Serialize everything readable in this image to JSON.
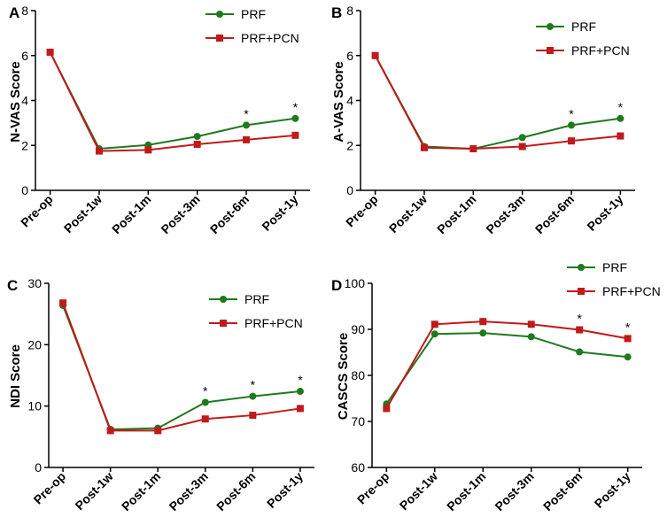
{
  "colors": {
    "prf": "#1e7a1e",
    "prf_pcn": "#c01a1a",
    "axis": "#000000"
  },
  "chart_data": [
    {
      "type": "line",
      "panel": "A",
      "ylabel": "N-VAS Score",
      "ylim": [
        0,
        8
      ],
      "yticks": [
        0,
        2,
        4,
        6,
        8
      ],
      "categories": [
        "Pre-op",
        "Post-1w",
        "Post-1m",
        "Post-3m",
        "Post-6m",
        "Post-1y"
      ],
      "series": [
        {
          "name": "PRF",
          "values": [
            6.15,
            1.85,
            2.02,
            2.4,
            2.9,
            3.2
          ]
        },
        {
          "name": "PRF+PCN",
          "values": [
            6.15,
            1.75,
            1.8,
            2.05,
            2.25,
            2.45
          ]
        }
      ],
      "significance": [
        {
          "category": "Post-6m",
          "label": "*"
        },
        {
          "category": "Post-1y",
          "label": "*"
        }
      ],
      "legend": "top-right"
    },
    {
      "type": "line",
      "panel": "B",
      "ylabel": "A-VAS Score",
      "ylim": [
        0,
        8
      ],
      "yticks": [
        0,
        2,
        4,
        6,
        8
      ],
      "categories": [
        "Pre-op",
        "Post-1w",
        "Post-1m",
        "Post-3m",
        "Post-6m",
        "Post-1y"
      ],
      "series": [
        {
          "name": "PRF",
          "values": [
            6.0,
            1.95,
            1.85,
            2.35,
            2.9,
            3.2
          ]
        },
        {
          "name": "PRF+PCN",
          "values": [
            6.0,
            1.9,
            1.85,
            1.95,
            2.2,
            2.42
          ]
        }
      ],
      "significance": [
        {
          "category": "Post-6m",
          "label": "*"
        },
        {
          "category": "Post-1y",
          "label": "*"
        }
      ],
      "legend": "top-right"
    },
    {
      "type": "line",
      "panel": "C",
      "ylabel": "NDI Score",
      "ylim": [
        0,
        30
      ],
      "yticks": [
        0,
        10,
        20,
        30
      ],
      "categories": [
        "Pre-op",
        "Post-1w",
        "Post-1m",
        "Post-3m",
        "Post-6m",
        "Post-1y"
      ],
      "series": [
        {
          "name": "PRF",
          "values": [
            26.4,
            6.2,
            6.4,
            10.6,
            11.6,
            12.4
          ]
        },
        {
          "name": "PRF+PCN",
          "values": [
            26.8,
            6.0,
            6.0,
            7.9,
            8.5,
            9.6
          ]
        }
      ],
      "significance": [
        {
          "category": "Post-3m",
          "label": "*"
        },
        {
          "category": "Post-6m",
          "label": "*"
        },
        {
          "category": "Post-1y",
          "label": "*"
        }
      ],
      "legend": "top-right"
    },
    {
      "type": "line",
      "panel": "D",
      "ylabel": "CASCS Score",
      "ylim": [
        60,
        100
      ],
      "yticks": [
        60,
        70,
        80,
        90,
        100
      ],
      "categories": [
        "Pre-op",
        "Post-1w",
        "Post-1m",
        "Post-3m",
        "Post-6m",
        "Post-1y"
      ],
      "series": [
        {
          "name": "PRF",
          "values": [
            73.8,
            89.0,
            89.2,
            88.4,
            85.1,
            84.0
          ]
        },
        {
          "name": "PRF+PCN",
          "values": [
            72.8,
            91.1,
            91.7,
            91.1,
            89.9,
            88.0
          ]
        }
      ],
      "significance": [
        {
          "category": "Post-6m",
          "label": "*"
        },
        {
          "category": "Post-1y",
          "label": "*"
        }
      ],
      "legend": "top-right"
    }
  ]
}
